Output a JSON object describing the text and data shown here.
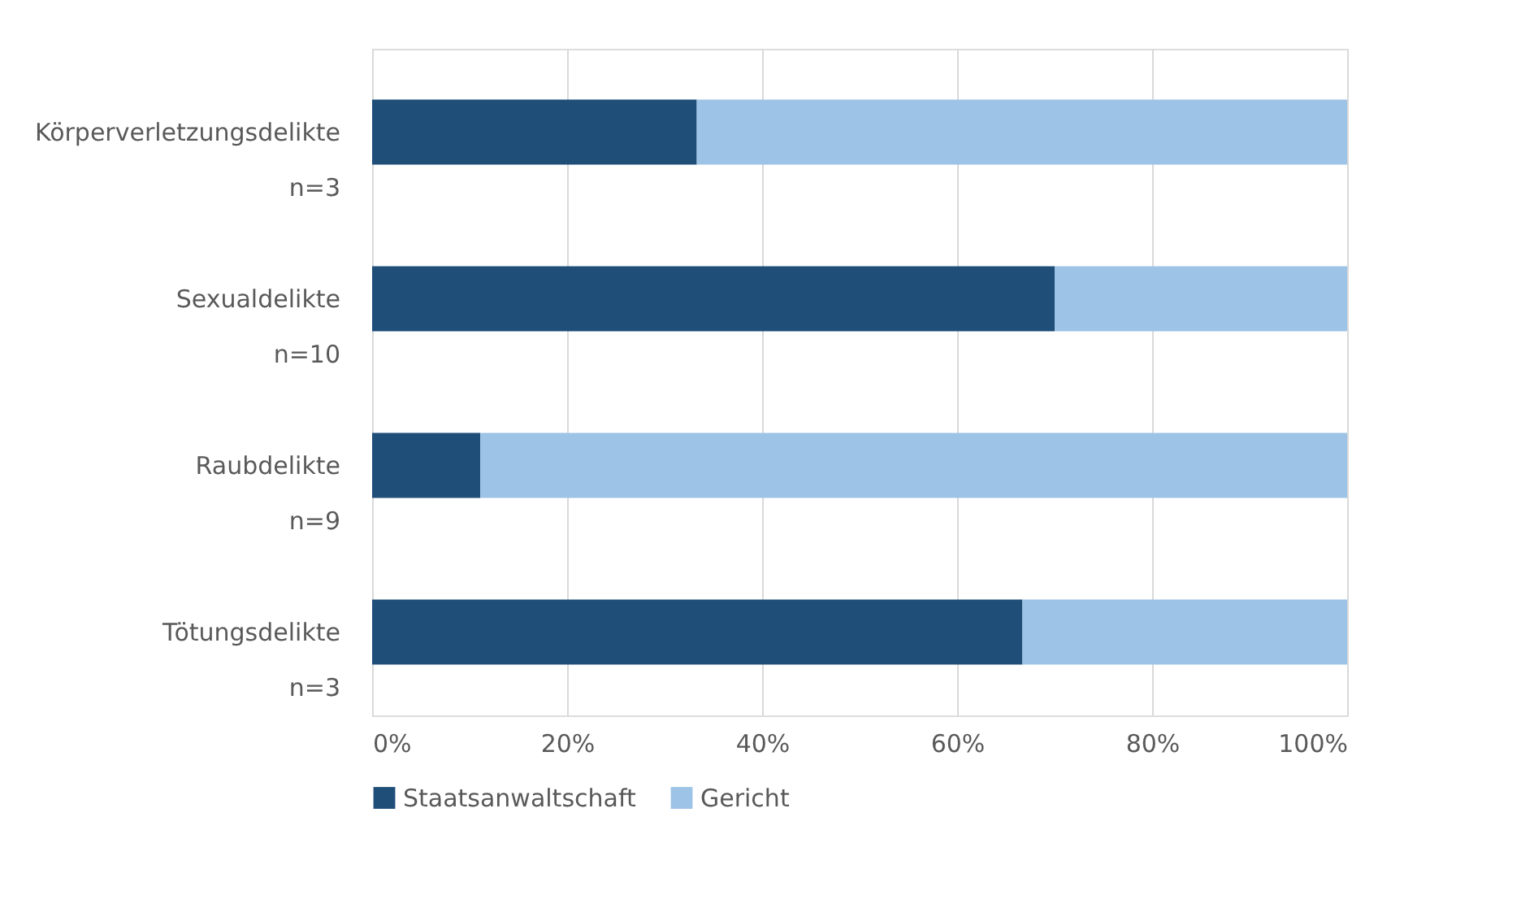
{
  "chart_data": {
    "type": "bar",
    "orientation": "horizontal",
    "stacked": true,
    "categories": [
      "Körperverletzungsdelikte\nn=3",
      "Sexualdelikte\nn=10",
      "Raubdelikte\nn=9",
      "Tötungsdelikte\nn=3"
    ],
    "series": [
      {
        "name": "Staatsanwaltschaft",
        "color": "#1f4e79",
        "values": [
          33.3,
          70,
          11.1,
          66.7
        ]
      },
      {
        "name": "Gericht",
        "color": "#9dc3e6",
        "values": [
          66.7,
          30,
          88.9,
          33.3
        ]
      }
    ],
    "xlim": [
      0,
      100
    ],
    "xticks": [
      {
        "value": 0,
        "label": "0%"
      },
      {
        "value": 20,
        "label": "20%"
      },
      {
        "value": 40,
        "label": "40%"
      },
      {
        "value": 60,
        "label": "60%"
      },
      {
        "value": 80,
        "label": "80%"
      },
      {
        "value": 100,
        "label": "100%"
      }
    ],
    "grid": "x",
    "legend": "bottom"
  }
}
